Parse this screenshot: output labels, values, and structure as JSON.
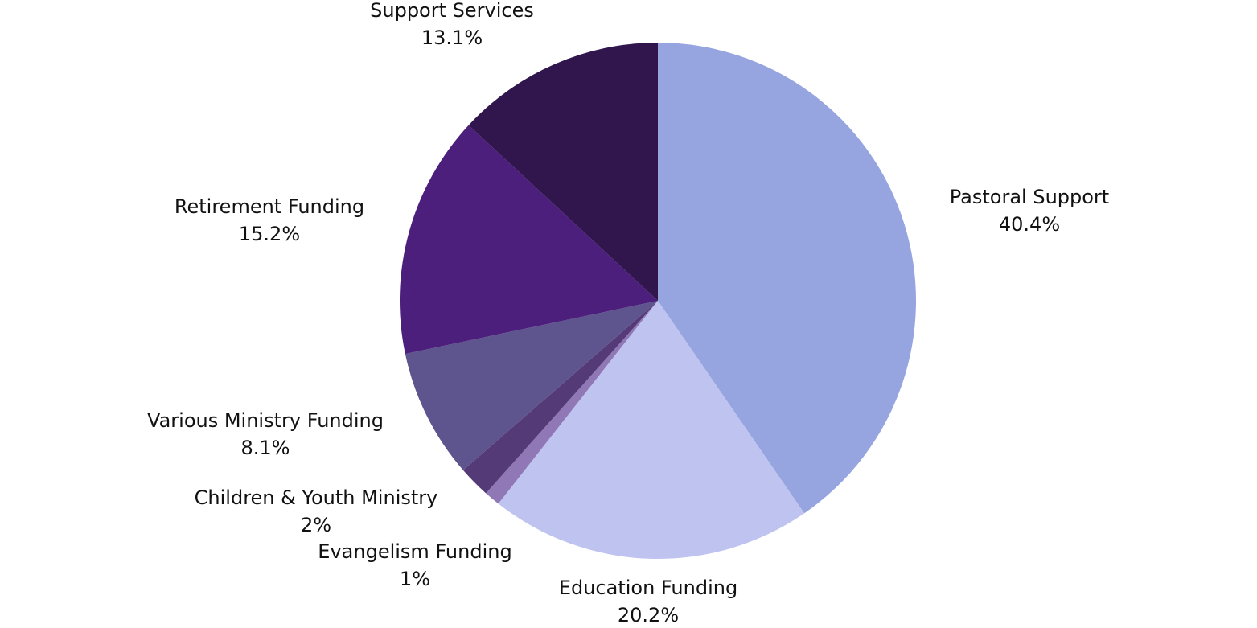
{
  "chart_data": {
    "type": "pie",
    "categories": [
      "Pastoral Support",
      "Education Funding",
      "Evangelism Funding",
      "Children & Youth Ministry",
      "Various Ministry Funding",
      "Retirement Funding",
      "Support Services"
    ],
    "values": [
      40.4,
      20.2,
      1,
      2,
      8.1,
      15.2,
      13.1
    ],
    "value_labels": [
      "40.4%",
      "20.2%",
      "1%",
      "2%",
      "8.1%",
      "15.2%",
      "13.1%"
    ],
    "colors": [
      "#96a5e0",
      "#bfc3f0",
      "#8f78b5",
      "#553a78",
      "#5e548e",
      "#4c1f7c",
      "#30164d"
    ]
  }
}
